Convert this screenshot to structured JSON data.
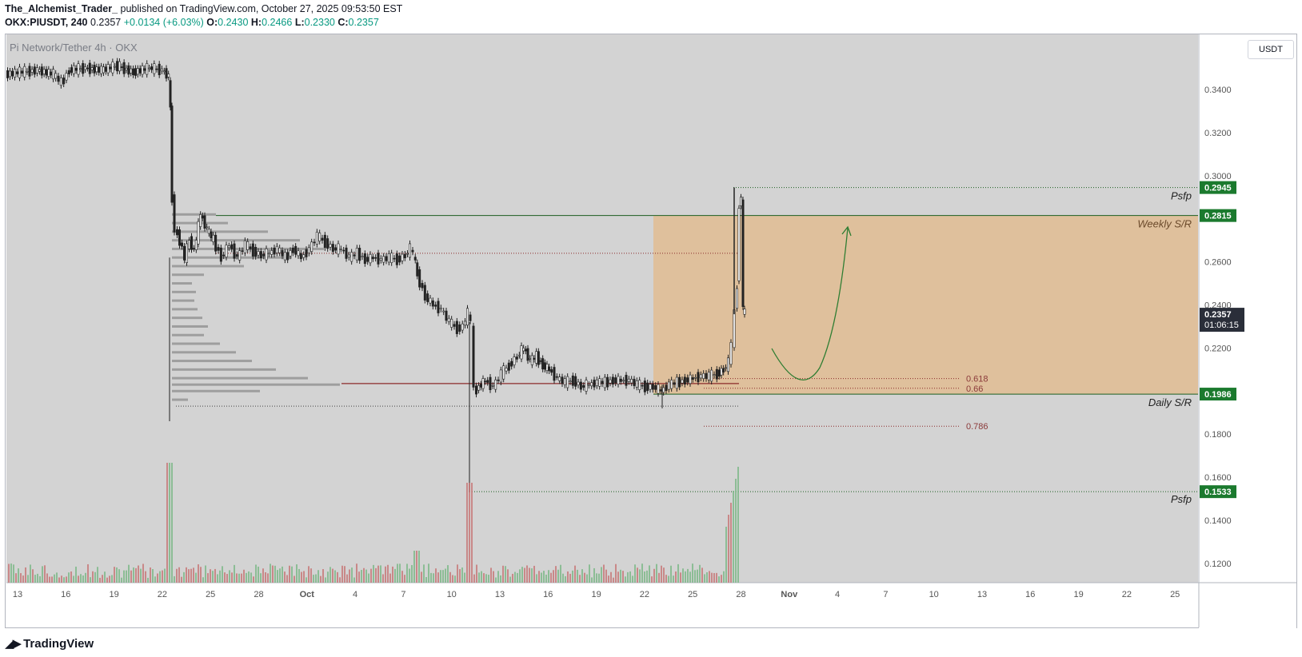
{
  "header": {
    "author": "The_Alchemist_Trader_",
    "published": "published on TradingView.com, October 27, 2025 09:53:50 EST",
    "symbol": "OKX:PIUSDT, 240",
    "last": "0.2357",
    "change": "+0.0134 (+6.03%)",
    "o_label": "O:",
    "o": "0.2430",
    "h_label": "H:",
    "h": "0.2466",
    "l_label": "L:",
    "l": "0.2330",
    "c_label": "C:",
    "c": "0.2357"
  },
  "watermark": "Pi Network/Tether 4h · OKX",
  "unit_button": "USDT",
  "brand": "TradingView",
  "colors": {
    "up": "#26a69a",
    "down": "#ef5350",
    "zone": "#e9b070",
    "sr_line": "#1b5e20",
    "label_green": "#1b7a2e",
    "fib_line": "#8b2a2a",
    "arrow": "#2e7d32"
  },
  "chart_data": {
    "type": "candlestick",
    "ylim": [
      0.1,
      0.36
    ],
    "y_ticks": [
      "0.3400",
      "0.3200",
      "0.3000",
      "0.2600",
      "0.2400",
      "0.2200",
      "0.2000",
      "0.1800",
      "0.1600",
      "0.1400",
      "0.1200"
    ],
    "y_tick_values": [
      0.34,
      0.32,
      0.3,
      0.26,
      0.24,
      0.22,
      0.2,
      0.18,
      0.16,
      0.14,
      0.12
    ],
    "x_ticks": [
      "13",
      "16",
      "19",
      "22",
      "25",
      "28",
      "Oct",
      "4",
      "7",
      "10",
      "13",
      "16",
      "19",
      "22",
      "25",
      "28",
      "Nov",
      "4",
      "7",
      "10",
      "13",
      "16",
      "19",
      "22",
      "25"
    ],
    "price_labels": [
      {
        "text": "0.2945",
        "value": 0.2945
      },
      {
        "text": "0.2815",
        "value": 0.2815
      },
      {
        "text": "0.1986",
        "value": 0.1986
      },
      {
        "text": "0.1533",
        "value": 0.1533
      }
    ],
    "current_price": {
      "price": "0.2357",
      "countdown": "01:06:15",
      "value": 0.2357
    },
    "zone": {
      "top": 0.2815,
      "bottom": 0.1986
    },
    "levels": [
      {
        "label": "Psfp",
        "value": 0.2945
      },
      {
        "label": "Weekly S/R",
        "value": 0.2815
      },
      {
        "label": "Daily S/R",
        "value": 0.1986
      },
      {
        "label": "Psfp",
        "value": 0.1533
      }
    ],
    "fib_levels": [
      {
        "label": "0.618",
        "value": 0.2058
      },
      {
        "label": "0.66",
        "value": 0.2013
      },
      {
        "label": "0.786",
        "value": 0.1837
      }
    ],
    "price_path": [
      [
        0,
        0.347
      ],
      [
        18,
        0.348
      ],
      [
        40,
        0.349
      ],
      [
        60,
        0.347
      ],
      [
        70,
        0.343
      ],
      [
        80,
        0.349
      ],
      [
        100,
        0.35
      ],
      [
        120,
        0.349
      ],
      [
        140,
        0.351
      ],
      [
        160,
        0.348
      ],
      [
        180,
        0.35
      ],
      [
        196,
        0.349
      ],
      [
        204,
        0.346
      ],
      [
        206,
        0.33
      ],
      [
        208,
        0.29
      ],
      [
        212,
        0.275
      ],
      [
        218,
        0.27
      ],
      [
        224,
        0.262
      ],
      [
        230,
        0.27
      ],
      [
        236,
        0.265
      ],
      [
        244,
        0.282
      ],
      [
        252,
        0.275
      ],
      [
        260,
        0.27
      ],
      [
        270,
        0.262
      ],
      [
        280,
        0.268
      ],
      [
        290,
        0.262
      ],
      [
        300,
        0.268
      ],
      [
        310,
        0.265
      ],
      [
        320,
        0.263
      ],
      [
        330,
        0.264
      ],
      [
        340,
        0.266
      ],
      [
        350,
        0.262
      ],
      [
        360,
        0.266
      ],
      [
        370,
        0.262
      ],
      [
        380,
        0.266
      ],
      [
        390,
        0.272
      ],
      [
        400,
        0.269
      ],
      [
        410,
        0.266
      ],
      [
        420,
        0.266
      ],
      [
        430,
        0.262
      ],
      [
        440,
        0.264
      ],
      [
        450,
        0.261
      ],
      [
        460,
        0.262
      ],
      [
        470,
        0.261
      ],
      [
        480,
        0.262
      ],
      [
        490,
        0.261
      ],
      [
        500,
        0.263
      ],
      [
        506,
        0.266
      ],
      [
        510,
        0.264
      ],
      [
        515,
        0.254
      ],
      [
        525,
        0.244
      ],
      [
        535,
        0.24
      ],
      [
        545,
        0.238
      ],
      [
        555,
        0.232
      ],
      [
        565,
        0.229
      ],
      [
        572,
        0.23
      ],
      [
        578,
        0.236
      ],
      [
        582,
        0.232
      ],
      [
        586,
        0.2
      ],
      [
        592,
        0.202
      ],
      [
        600,
        0.205
      ],
      [
        610,
        0.202
      ],
      [
        620,
        0.208
      ],
      [
        630,
        0.212
      ],
      [
        640,
        0.216
      ],
      [
        648,
        0.22
      ],
      [
        656,
        0.214
      ],
      [
        664,
        0.216
      ],
      [
        672,
        0.212
      ],
      [
        680,
        0.21
      ],
      [
        690,
        0.206
      ],
      [
        700,
        0.204
      ],
      [
        710,
        0.205
      ],
      [
        720,
        0.202
      ],
      [
        730,
        0.203
      ],
      [
        740,
        0.204
      ],
      [
        750,
        0.204
      ],
      [
        760,
        0.205
      ],
      [
        770,
        0.205
      ],
      [
        780,
        0.205
      ],
      [
        790,
        0.203
      ],
      [
        800,
        0.202
      ],
      [
        810,
        0.202
      ],
      [
        820,
        0.2
      ],
      [
        830,
        0.203
      ],
      [
        840,
        0.204
      ],
      [
        850,
        0.205
      ],
      [
        860,
        0.206
      ],
      [
        870,
        0.207
      ],
      [
        880,
        0.207
      ],
      [
        890,
        0.208
      ],
      [
        898,
        0.21
      ],
      [
        904,
        0.213
      ],
      [
        908,
        0.222
      ],
      [
        912,
        0.236
      ],
      [
        915,
        0.25
      ],
      [
        917,
        0.286
      ],
      [
        920,
        0.29
      ],
      [
        922,
        0.238
      ],
      [
        924,
        0.2357
      ]
    ],
    "volume_profile_bins": [
      [
        0.282,
        55
      ],
      [
        0.278,
        70
      ],
      [
        0.274,
        120
      ],
      [
        0.27,
        160
      ],
      [
        0.266,
        190
      ],
      [
        0.262,
        150
      ],
      [
        0.258,
        90
      ],
      [
        0.254,
        40
      ],
      [
        0.25,
        25
      ],
      [
        0.246,
        30
      ],
      [
        0.242,
        28
      ],
      [
        0.238,
        32
      ],
      [
        0.234,
        38
      ],
      [
        0.23,
        45
      ],
      [
        0.226,
        40
      ],
      [
        0.222,
        60
      ],
      [
        0.218,
        80
      ],
      [
        0.214,
        100
      ],
      [
        0.21,
        130
      ],
      [
        0.206,
        170
      ],
      [
        0.203,
        210
      ],
      [
        0.2,
        110
      ],
      [
        0.196,
        20
      ]
    ]
  }
}
